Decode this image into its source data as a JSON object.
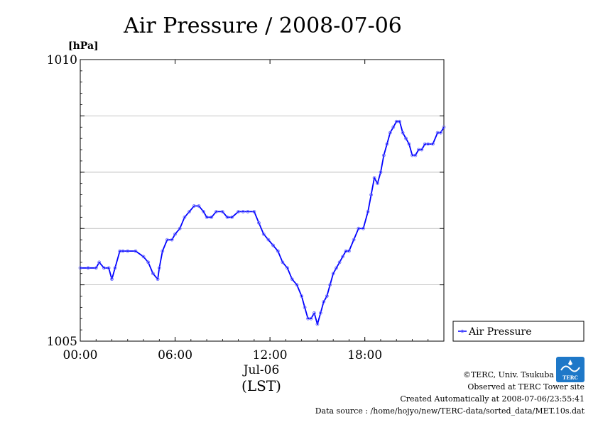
{
  "chart_data": {
    "type": "line",
    "title": "Air Pressure / 2008-07-06",
    "ylabel": "[hPa]",
    "xlabel": "(LST)",
    "x_date_label": "Jul-06",
    "ylim": [
      1005,
      1010
    ],
    "y_ticks": [
      1005,
      1006,
      1007,
      1008,
      1009,
      1010
    ],
    "y_tick_labels": [
      "1005",
      "",
      "",
      "",
      "",
      "1010"
    ],
    "xlim": [
      0,
      23
    ],
    "x_ticks": [
      0,
      6,
      12,
      18
    ],
    "x_tick_labels": [
      "00:00",
      "06:00",
      "12:00",
      "18:00"
    ],
    "grid": true,
    "legend_position": "bottom-right-outside",
    "series": [
      {
        "name": "Air Pressure",
        "color": "#0000ff",
        "x": [
          0.0,
          0.5,
          1.0,
          1.2,
          1.5,
          1.8,
          2.0,
          2.2,
          2.5,
          2.7,
          3.0,
          3.5,
          4.0,
          4.3,
          4.6,
          4.9,
          5.0,
          5.2,
          5.5,
          5.8,
          6.0,
          6.3,
          6.6,
          6.9,
          7.2,
          7.5,
          7.8,
          8.0,
          8.3,
          8.6,
          9.0,
          9.3,
          9.6,
          10.0,
          10.3,
          10.6,
          11.0,
          11.3,
          11.6,
          11.9,
          12.2,
          12.5,
          12.8,
          13.1,
          13.4,
          13.7,
          14.0,
          14.2,
          14.4,
          14.6,
          14.8,
          15.0,
          15.2,
          15.4,
          15.6,
          15.8,
          16.0,
          16.2,
          16.4,
          16.6,
          16.8,
          17.0,
          17.3,
          17.6,
          17.9,
          18.2,
          18.4,
          18.6,
          18.8,
          19.0,
          19.2,
          19.4,
          19.6,
          19.8,
          20.0,
          20.2,
          20.4,
          20.6,
          20.8,
          21.0,
          21.2,
          21.4,
          21.6,
          21.8,
          22.0,
          22.3,
          22.6,
          22.8,
          23.0
        ],
        "y": [
          1006.3,
          1006.3,
          1006.3,
          1006.4,
          1006.3,
          1006.3,
          1006.1,
          1006.3,
          1006.6,
          1006.6,
          1006.6,
          1006.6,
          1006.5,
          1006.4,
          1006.2,
          1006.1,
          1006.3,
          1006.6,
          1006.8,
          1006.8,
          1006.9,
          1007.0,
          1007.2,
          1007.3,
          1007.4,
          1007.4,
          1007.3,
          1007.2,
          1007.2,
          1007.3,
          1007.3,
          1007.2,
          1007.2,
          1007.3,
          1007.3,
          1007.3,
          1007.3,
          1007.1,
          1006.9,
          1006.8,
          1006.7,
          1006.6,
          1006.4,
          1006.3,
          1006.1,
          1006.0,
          1005.8,
          1005.6,
          1005.4,
          1005.4,
          1005.5,
          1005.3,
          1005.5,
          1005.7,
          1005.8,
          1006.0,
          1006.2,
          1006.3,
          1006.4,
          1006.5,
          1006.6,
          1006.6,
          1006.8,
          1007.0,
          1007.0,
          1007.3,
          1007.6,
          1007.9,
          1007.8,
          1008.0,
          1008.3,
          1008.5,
          1008.7,
          1008.8,
          1008.9,
          1008.9,
          1008.7,
          1008.6,
          1008.5,
          1008.3,
          1008.3,
          1008.4,
          1008.4,
          1008.5,
          1008.5,
          1008.5,
          1008.7,
          1008.7,
          1008.8
        ]
      }
    ]
  },
  "footer": {
    "copyright": "©TERC, Univ. Tsukuba",
    "site": "Observed at TERC Tower site",
    "created": "Created Automatically at 2008-07-06/23:55:41",
    "source": "Data source : /home/hojyo/new/TERC-data/sorted_data/MET.10s.dat"
  },
  "logo": {
    "text": "TERC"
  }
}
